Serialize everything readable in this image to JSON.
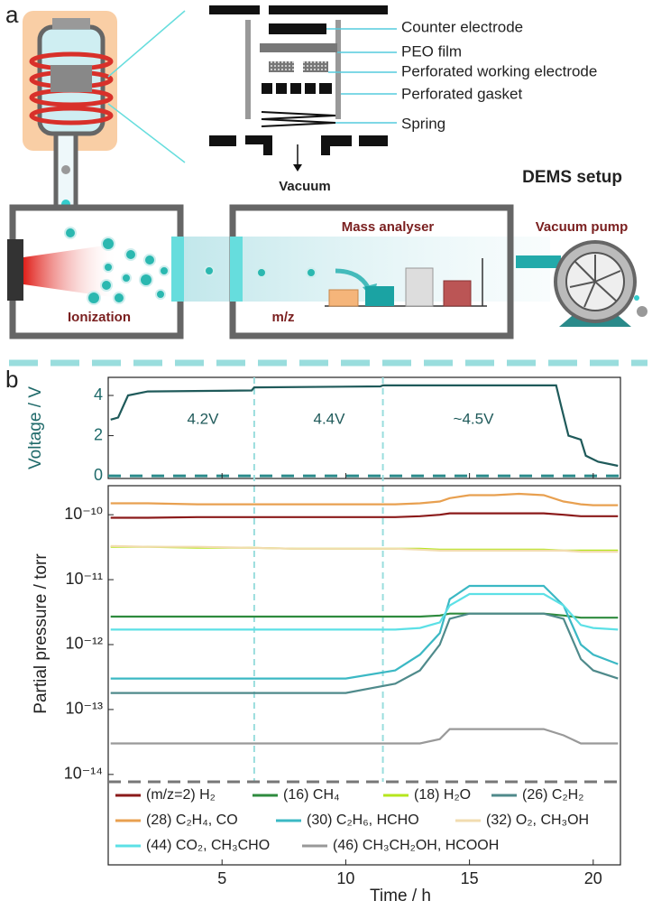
{
  "diagram": {
    "panel_label": "a",
    "labels": [
      "Counter electrode",
      "PEO film",
      "Perforated working electrode",
      "Perforated gasket",
      "Spring"
    ],
    "vacuum": "Vacuum",
    "setup_title": "DEMS setup",
    "mass_analyser": "Mass analyser",
    "vacuum_pump": "Vacuum pump",
    "ionization": "Ionization",
    "mz": "m/z"
  },
  "chart_data": [
    {
      "type": "line",
      "panel_label": "b",
      "ylabel": "Voltage / V",
      "xlim": [
        0.4,
        21.1
      ],
      "ylim": [
        -0.13,
        4.9
      ],
      "yticks": [
        0,
        2,
        4
      ],
      "reference_line": 0,
      "vlines": [
        6.3,
        11.5
      ],
      "annotations": [
        "4.2V",
        "4.4V",
        "~4.5V"
      ],
      "color": "#1f5a5a",
      "x": [
        0.5,
        0.8,
        1.2,
        2,
        6.2,
        6.3,
        11.4,
        11.5,
        18.5,
        18.7,
        19,
        19.5,
        19.7,
        20.2,
        21
      ],
      "values": [
        2.8,
        2.9,
        4.0,
        4.2,
        4.25,
        4.4,
        4.45,
        4.5,
        4.5,
        3.5,
        2.0,
        1.8,
        1.0,
        0.7,
        0.5
      ]
    },
    {
      "type": "line",
      "log_scale": true,
      "xlabel": "Time / h",
      "ylabel": "Partial pressure / torr",
      "xlim": [
        0.4,
        21.1
      ],
      "xticks": [
        5,
        10,
        15,
        20
      ],
      "ylim": [
        7.7e-15,
        2.8e-10
      ],
      "yticks": [
        {
          "value": 1e-14,
          "label": "10⁻¹⁴"
        },
        {
          "value": 1e-13,
          "label": "10⁻¹³"
        },
        {
          "value": 1e-12,
          "label": "10⁻¹²"
        },
        {
          "value": 1e-11,
          "label": "10⁻¹¹"
        },
        {
          "value": 1e-10,
          "label": "10⁻¹⁰"
        }
      ],
      "x": [
        0.5,
        2,
        4,
        6,
        8,
        10,
        12,
        13,
        13.8,
        14.2,
        15,
        16,
        17,
        18,
        18.8,
        19.5,
        20,
        21
      ],
      "series": [
        {
          "name": "(m/z=2) H₂",
          "color": "#8b1a1a",
          "values": [
            9e-11,
            9e-11,
            9.2e-11,
            9.2e-11,
            9.2e-11,
            9.2e-11,
            9.2e-11,
            9.5e-11,
            1e-10,
            1.05e-10,
            1.05e-10,
            1.05e-10,
            1.05e-10,
            1.05e-10,
            1e-10,
            9.5e-11,
            9.5e-11,
            9.5e-11
          ]
        },
        {
          "name": "(16) CH₄",
          "color": "#2e8b3e",
          "values": [
            2.7e-12,
            2.7e-12,
            2.7e-12,
            2.7e-12,
            2.7e-12,
            2.7e-12,
            2.7e-12,
            2.7e-12,
            2.8e-12,
            3e-12,
            3e-12,
            3e-12,
            3e-12,
            3e-12,
            2.8e-12,
            2.6e-12,
            2.6e-12,
            2.6e-12
          ]
        },
        {
          "name": "(18) H₂O",
          "color": "#b5e61d",
          "values": [
            3.2e-11,
            3.2e-11,
            3.1e-11,
            3.1e-11,
            3e-11,
            3e-11,
            3e-11,
            3e-11,
            2.9e-11,
            2.9e-11,
            2.9e-11,
            2.9e-11,
            2.9e-11,
            2.9e-11,
            2.8e-11,
            2.8e-11,
            2.8e-11,
            2.8e-11
          ]
        },
        {
          "name": "(26) C₂H₂",
          "color": "#4f8a8b",
          "values": [
            1.8e-13,
            1.8e-13,
            1.8e-13,
            1.8e-13,
            1.8e-13,
            1.8e-13,
            2.5e-13,
            4e-13,
            1e-12,
            2.5e-12,
            3e-12,
            3e-12,
            3e-12,
            3e-12,
            2.5e-12,
            6e-13,
            4e-13,
            3e-13
          ]
        },
        {
          "name": "(28) C₂H₄, CO",
          "color": "#e8a050",
          "values": [
            1.5e-10,
            1.5e-10,
            1.45e-10,
            1.45e-10,
            1.45e-10,
            1.45e-10,
            1.45e-10,
            1.5e-10,
            1.6e-10,
            1.8e-10,
            2e-10,
            2e-10,
            2.1e-10,
            2e-10,
            1.6e-10,
            1.45e-10,
            1.4e-10,
            1.4e-10
          ]
        },
        {
          "name": "(30) C₂H₆, HCHO",
          "color": "#3bb8c4",
          "values": [
            3e-13,
            3e-13,
            3e-13,
            3e-13,
            3e-13,
            3e-13,
            4e-13,
            7e-13,
            1.5e-12,
            5e-12,
            8e-12,
            8e-12,
            8e-12,
            8e-12,
            4e-12,
            1e-12,
            7e-13,
            5e-13
          ]
        },
        {
          "name": "(32) O₂, CH₃OH",
          "color": "#f2dcb0",
          "values": [
            3.3e-11,
            3.2e-11,
            3.2e-11,
            3.1e-11,
            3e-11,
            3e-11,
            3e-11,
            2.9e-11,
            2.8e-11,
            2.8e-11,
            2.8e-11,
            2.8e-11,
            2.8e-11,
            2.8e-11,
            2.8e-11,
            2.7e-11,
            2.7e-11,
            2.7e-11
          ]
        },
        {
          "name": "(44) CO₂, CH₃CHO",
          "color": "#5ce0e6",
          "values": [
            1.7e-12,
            1.7e-12,
            1.7e-12,
            1.7e-12,
            1.7e-12,
            1.7e-12,
            1.7e-12,
            1.8e-12,
            2.2e-12,
            4e-12,
            6e-12,
            6e-12,
            6e-12,
            6e-12,
            4e-12,
            2e-12,
            1.8e-12,
            1.7e-12
          ]
        },
        {
          "name": "(46) CH₃CH₂OH, HCOOH",
          "color": "#999999",
          "values": [
            3e-14,
            3e-14,
            3e-14,
            3e-14,
            3e-14,
            3e-14,
            3e-14,
            3e-14,
            3.5e-14,
            5e-14,
            5e-14,
            5e-14,
            5e-14,
            5e-14,
            4e-14,
            3e-14,
            3e-14,
            3e-14
          ]
        }
      ]
    }
  ]
}
